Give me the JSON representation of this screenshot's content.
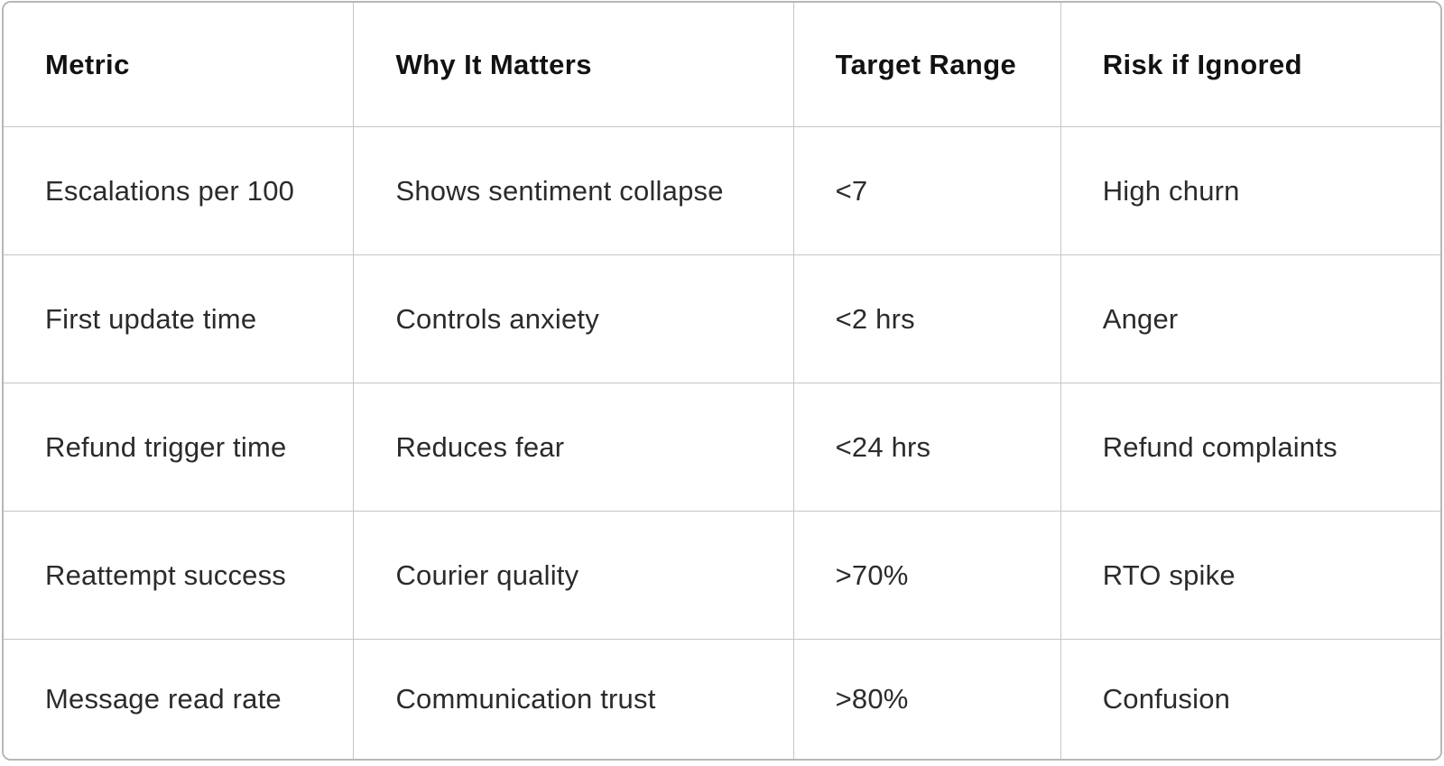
{
  "chart_data": {
    "type": "table",
    "columns": [
      "Metric",
      "Why It Matters",
      "Target Range",
      "Risk if Ignored"
    ],
    "rows": [
      [
        "Escalations per 100",
        "Shows sentiment collapse",
        "<7",
        "High churn"
      ],
      [
        "First update time",
        "Controls anxiety",
        "<2 hrs",
        "Anger"
      ],
      [
        "Refund trigger time",
        "Reduces fear",
        "<24 hrs",
        "Refund complaints"
      ],
      [
        "Reattempt success",
        "Courier quality",
        ">70%",
        "RTO spike"
      ],
      [
        "Message read rate",
        "Communication trust",
        ">80%",
        "Confusion"
      ]
    ],
    "layout_hints": {
      "header_row": true,
      "grid": "full gridlines",
      "text_align": "left",
      "rounded_outer_border": true
    }
  },
  "colors": {
    "background": "#ffffff",
    "border": "#c6c6c6",
    "outer_border": "#b7b7b7",
    "header_text": "#121212",
    "body_text": "#2b2b2b"
  }
}
